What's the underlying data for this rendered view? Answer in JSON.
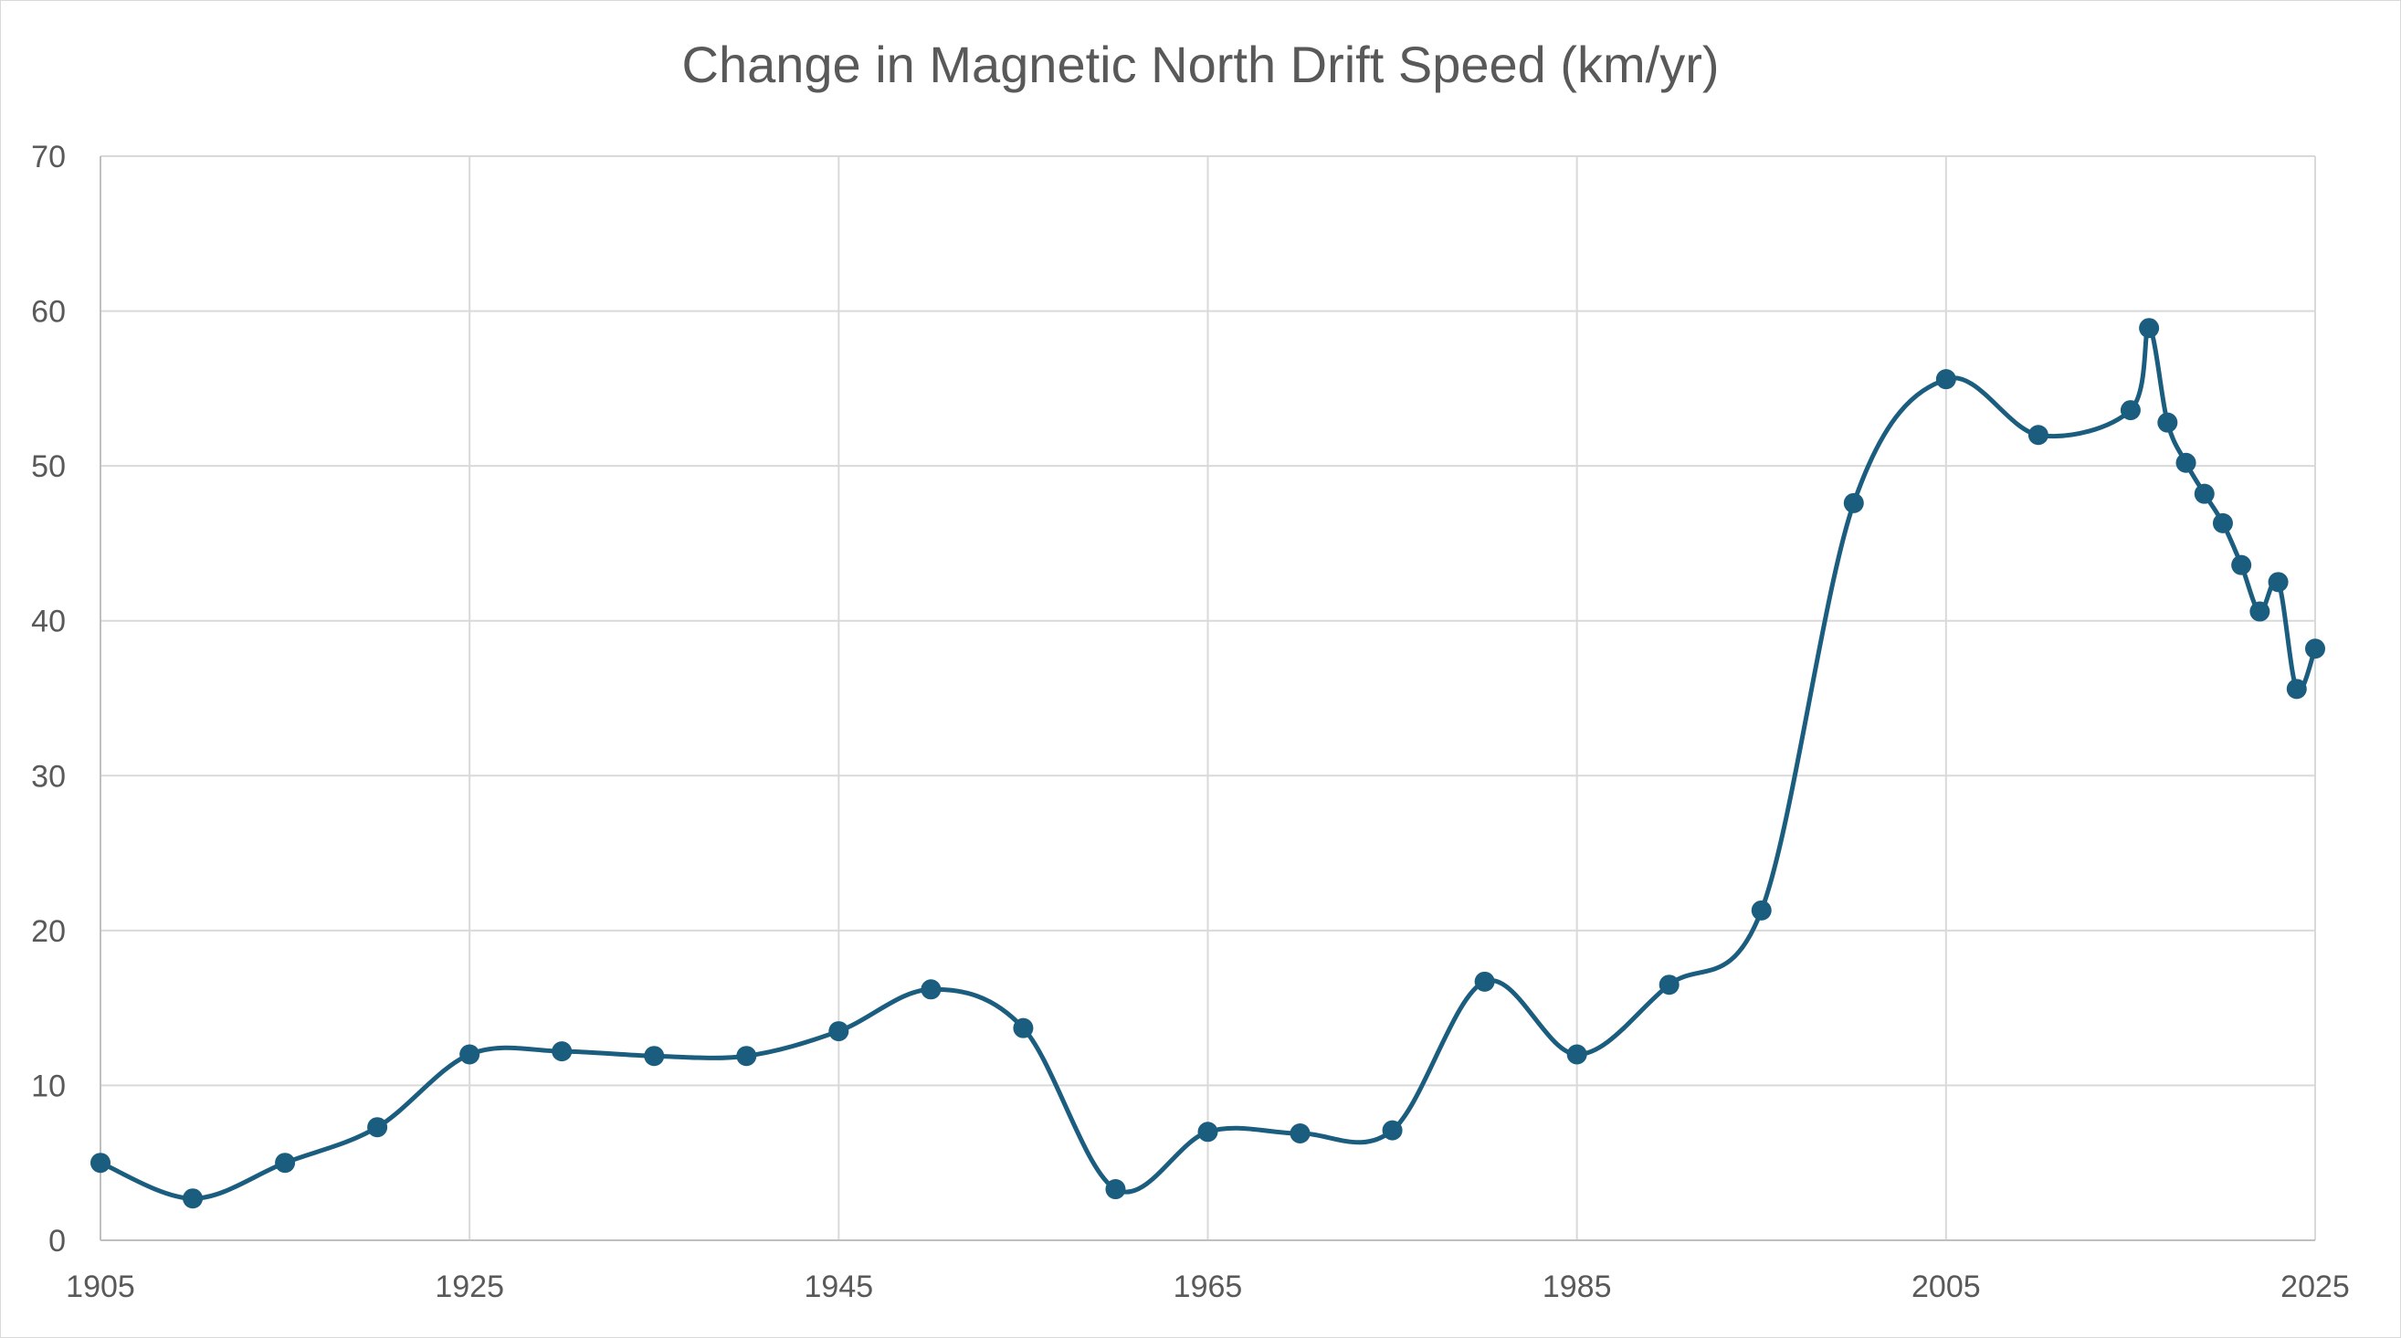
{
  "chart_data": {
    "type": "line",
    "title": "Change in Magnetic North Drift Speed (km/yr)",
    "xlabel": "",
    "ylabel": "",
    "xlim": [
      1905,
      2025
    ],
    "ylim": [
      0,
      70
    ],
    "x_ticks": [
      1905,
      1925,
      1945,
      1965,
      1985,
      2005,
      2025
    ],
    "y_ticks": [
      0,
      10,
      20,
      30,
      40,
      50,
      60,
      70
    ],
    "grid": true,
    "legend": "none",
    "smooth": true,
    "color": "#1b5d7e",
    "series": [
      {
        "x": [
          1905,
          1910,
          1915,
          1920,
          1925,
          1930,
          1935,
          1940,
          1945,
          1950,
          1955,
          1960,
          1965,
          1970,
          1975,
          1980,
          1985,
          1990,
          1995,
          2000,
          2005,
          2010,
          2015,
          2016,
          2017,
          2018,
          2019,
          2020,
          2021,
          2022,
          2023,
          2024,
          2025
        ],
        "values": [
          5.0,
          2.7,
          5.0,
          7.3,
          12.0,
          12.2,
          11.9,
          11.9,
          13.5,
          16.2,
          13.7,
          3.3,
          7.0,
          6.9,
          7.1,
          16.7,
          12.0,
          16.5,
          21.3,
          47.6,
          55.6,
          52.0,
          53.6,
          58.9,
          52.8,
          50.2,
          48.2,
          46.3,
          43.6,
          40.6,
          42.5,
          35.6,
          38.2
        ]
      }
    ]
  }
}
